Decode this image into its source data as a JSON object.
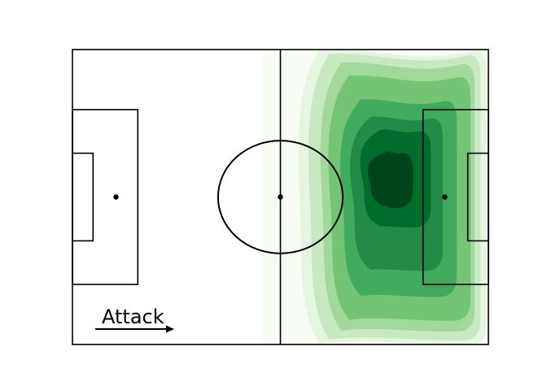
{
  "chart_data": {
    "type": "heatmap",
    "subtype": "soccer-pitch-kde",
    "attack_label": "Attack",
    "attack_direction": "left-to-right",
    "pitch_length": [
      0,
      105
    ],
    "pitch_width": [
      0,
      68
    ],
    "colormap": [
      "#f7fcf5",
      "#e5f5e0",
      "#c7e9c0",
      "#a1d99b",
      "#74c476",
      "#41ab5d",
      "#238b45",
      "#006d2c",
      "#00441b"
    ],
    "line_color": "#000000",
    "density_x_range": [
      48,
      105
    ],
    "density_contours": [
      {
        "level": 1,
        "xl": 48.0,
        "xr": 105.0,
        "ymin": -1,
        "ymax": 69
      },
      {
        "level": 2,
        "xl": 57.0,
        "xr": 104.5,
        "ymin": 0,
        "ymax": 68
      },
      {
        "level": 3,
        "xl": 59.5,
        "xr": 103.0,
        "ymin": 1.0,
        "ymax": 67.0
      },
      {
        "level": 4,
        "xl": 62.5,
        "xr": 101.5,
        "ymin": 3.0,
        "ymax": 65.0
      },
      {
        "level": 5,
        "xl": 64.5,
        "xr": 100.5,
        "ymin": 6.0,
        "ymax": 62.5
      },
      {
        "level": 6,
        "xl": 67.5,
        "xr": 97.0,
        "ymin": 11.5,
        "ymax": 57.0
      },
      {
        "level": 7,
        "xl": 70.0,
        "xr": 93.5,
        "ymin": 15.5,
        "ymax": 51.0
      },
      {
        "level": 8,
        "xl": 72.5,
        "xr": 90.5,
        "ymin": 18.5,
        "ymax": 41.0
      },
      {
        "level": 9,
        "xl": 74.5,
        "xr": 86.0,
        "ymin": 23.5,
        "ymax": 36.5
      }
    ]
  }
}
